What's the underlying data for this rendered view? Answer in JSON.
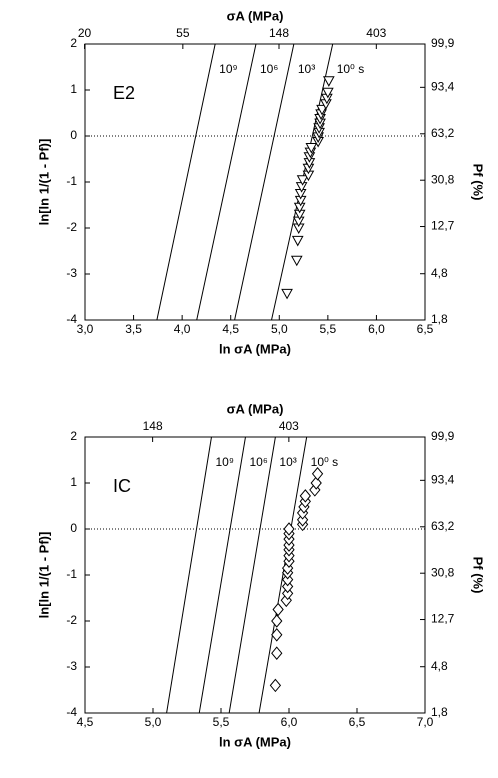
{
  "chart_data": [
    {
      "type": "scatter",
      "annotation": "E2",
      "xlabel": "ln σA (MPa)",
      "ylabel": "ln[ln 1/(1 - Pf)]",
      "x2label": "σA (MPa)",
      "y2label": "Pf (%)",
      "xlim": [
        3.0,
        6.5
      ],
      "xticks": [
        {
          "value": 3.0,
          "label": "3,0"
        },
        {
          "value": 3.5,
          "label": "3,5"
        },
        {
          "value": 4.0,
          "label": "4,0"
        },
        {
          "value": 4.5,
          "label": "4,5"
        },
        {
          "value": 5.0,
          "label": "5,0"
        },
        {
          "value": 5.5,
          "label": "5,5"
        },
        {
          "value": 6.0,
          "label": "6,0"
        },
        {
          "value": 6.5,
          "label": "6,5"
        }
      ],
      "ylim": [
        -4,
        2
      ],
      "yticks": [
        -4,
        -3,
        -2,
        -1,
        0,
        1,
        2
      ],
      "x2scale": "log",
      "x2lim": [
        20.09,
        665.14
      ],
      "x2ticks": [
        20,
        55,
        148,
        403
      ],
      "y2scale": "weibull",
      "y2lim": [
        1.8,
        99.9
      ],
      "y2ticks": [
        {
          "value": 1.8,
          "label": "1,8"
        },
        {
          "value": 4.8,
          "label": "4,8"
        },
        {
          "value": 12.7,
          "label": "12,7"
        },
        {
          "value": 30.8,
          "label": "30,8"
        },
        {
          "value": 63.2,
          "label": "63,2"
        },
        {
          "value": 93.4,
          "label": "93,4"
        },
        {
          "value": 99.9,
          "label": "99,9"
        }
      ],
      "hline": 0,
      "series": [
        {
          "name": "10⁹",
          "style": "line",
          "color": "#000000",
          "x": [
            3.74,
            4.34
          ],
          "y": [
            -4,
            2
          ]
        },
        {
          "name": "10⁶",
          "style": "line",
          "color": "#000000",
          "x": [
            4.15,
            4.76
          ],
          "y": [
            -4,
            2
          ]
        },
        {
          "name": "10³",
          "style": "line",
          "color": "#000000",
          "x": [
            4.54,
            5.15
          ],
          "y": [
            -4,
            2
          ]
        },
        {
          "name": "10⁰ s",
          "style": "line",
          "color": "#000000",
          "x": [
            4.92,
            5.55
          ],
          "y": [
            -4,
            2
          ]
        },
        {
          "style": "marker",
          "marker": "triangle-down",
          "color": "#000000",
          "x": [
            5.08,
            5.18,
            5.19,
            5.2,
            5.2,
            5.21,
            5.21,
            5.22,
            5.22,
            5.23,
            5.24,
            5.3,
            5.3,
            5.31,
            5.31,
            5.32,
            5.33,
            5.4,
            5.4,
            5.41,
            5.41,
            5.42,
            5.42,
            5.43,
            5.44,
            5.48,
            5.49,
            5.5,
            5.51
          ],
          "y": [
            -3.42,
            -2.7,
            -2.27,
            -2.0,
            -1.85,
            -1.7,
            -1.55,
            -1.4,
            -1.25,
            -1.1,
            -0.95,
            -0.85,
            -0.7,
            -0.58,
            -0.45,
            -0.35,
            -0.25,
            -0.12,
            -0.02,
            0.08,
            0.18,
            0.28,
            0.38,
            0.48,
            0.58,
            0.7,
            0.82,
            0.95,
            1.2
          ]
        }
      ]
    },
    {
      "type": "scatter",
      "annotation": "IC",
      "xlabel": "ln σA (MPa)",
      "ylabel": "ln[ln 1/(1 - Pf)]",
      "x2label": "σA (MPa)",
      "y2label": "Pf (%)",
      "xlim": [
        4.5,
        7.0
      ],
      "xticks": [
        {
          "value": 4.5,
          "label": "4,5"
        },
        {
          "value": 5.0,
          "label": "5,0"
        },
        {
          "value": 5.5,
          "label": "5,5"
        },
        {
          "value": 6.0,
          "label": "6,0"
        },
        {
          "value": 6.5,
          "label": "6,5"
        },
        {
          "value": 7.0,
          "label": "7,0"
        }
      ],
      "ylim": [
        -4,
        2
      ],
      "yticks": [
        -4,
        -3,
        -2,
        -1,
        0,
        1,
        2
      ],
      "x2scale": "log",
      "x2lim": [
        90.02,
        1096.63
      ],
      "x2ticks": [
        148,
        403
      ],
      "y2scale": "weibull",
      "y2lim": [
        1.8,
        99.9
      ],
      "y2ticks": [
        {
          "value": 1.8,
          "label": "1,8"
        },
        {
          "value": 4.8,
          "label": "4,8"
        },
        {
          "value": 12.7,
          "label": "12,7"
        },
        {
          "value": 30.8,
          "label": "30,8"
        },
        {
          "value": 63.2,
          "label": "63,2"
        },
        {
          "value": 93.4,
          "label": "93,4"
        },
        {
          "value": 99.9,
          "label": "99,9"
        }
      ],
      "hline": 0,
      "series": [
        {
          "name": "10⁹",
          "style": "line",
          "color": "#000000",
          "x": [
            5.1,
            5.43
          ],
          "y": [
            -4,
            2
          ]
        },
        {
          "name": "10⁶",
          "style": "line",
          "color": "#000000",
          "x": [
            5.34,
            5.68
          ],
          "y": [
            -4,
            2
          ]
        },
        {
          "name": "10³",
          "style": "line",
          "color": "#000000",
          "x": [
            5.56,
            5.9
          ],
          "y": [
            -4,
            2
          ]
        },
        {
          "name": "10⁰ s",
          "style": "line",
          "color": "#000000",
          "x": [
            5.78,
            6.13
          ],
          "y": [
            -4,
            2
          ]
        },
        {
          "style": "marker",
          "marker": "diamond",
          "color": "#000000",
          "x": [
            5.9,
            5.91,
            5.91,
            5.91,
            5.92,
            5.98,
            5.99,
            5.99,
            5.99,
            5.99,
            5.99,
            6.0,
            6.0,
            6.0,
            6.0,
            6.0,
            6.0,
            6.0,
            6.1,
            6.1,
            6.1,
            6.11,
            6.12,
            6.12,
            6.19,
            6.2,
            6.21
          ],
          "y": [
            -3.4,
            -2.7,
            -2.3,
            -2.0,
            -1.75,
            -1.55,
            -1.4,
            -1.25,
            -1.1,
            -0.95,
            -0.85,
            -0.7,
            -0.58,
            -0.45,
            -0.35,
            -0.22,
            -0.1,
            0.0,
            0.1,
            0.2,
            0.35,
            0.48,
            0.6,
            0.72,
            0.85,
            1.0,
            1.2
          ]
        }
      ]
    }
  ]
}
